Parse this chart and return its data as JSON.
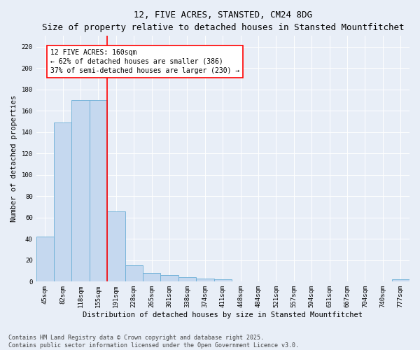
{
  "title": "12, FIVE ACRES, STANSTED, CM24 8DG",
  "subtitle": "Size of property relative to detached houses in Stansted Mountfitchet",
  "xlabel": "Distribution of detached houses by size in Stansted Mountfitchet",
  "ylabel": "Number of detached properties",
  "categories": [
    "45sqm",
    "82sqm",
    "118sqm",
    "155sqm",
    "191sqm",
    "228sqm",
    "265sqm",
    "301sqm",
    "338sqm",
    "374sqm",
    "411sqm",
    "448sqm",
    "484sqm",
    "521sqm",
    "557sqm",
    "594sqm",
    "631sqm",
    "667sqm",
    "704sqm",
    "740sqm",
    "777sqm"
  ],
  "values": [
    42,
    149,
    170,
    170,
    66,
    15,
    8,
    6,
    4,
    3,
    2,
    0,
    0,
    0,
    0,
    0,
    0,
    0,
    0,
    0,
    2
  ],
  "bar_color": "#c5d8ef",
  "bar_edge_color": "#6aaed6",
  "vline_position": 3.5,
  "vline_color": "red",
  "annotation_text": "12 FIVE ACRES: 160sqm\n← 62% of detached houses are smaller (386)\n37% of semi-detached houses are larger (230) →",
  "annotation_box_color": "white",
  "annotation_box_edge_color": "red",
  "ylim": [
    0,
    230
  ],
  "yticks": [
    0,
    20,
    40,
    60,
    80,
    100,
    120,
    140,
    160,
    180,
    200,
    220
  ],
  "footnote": "Contains HM Land Registry data © Crown copyright and database right 2025.\nContains public sector information licensed under the Open Government Licence v3.0.",
  "background_color": "#e8eef7",
  "plot_background_color": "#e8eef7",
  "title_fontsize": 9,
  "subtitle_fontsize": 8,
  "axis_label_fontsize": 7.5,
  "tick_fontsize": 6.5,
  "annotation_fontsize": 7,
  "footnote_fontsize": 6
}
